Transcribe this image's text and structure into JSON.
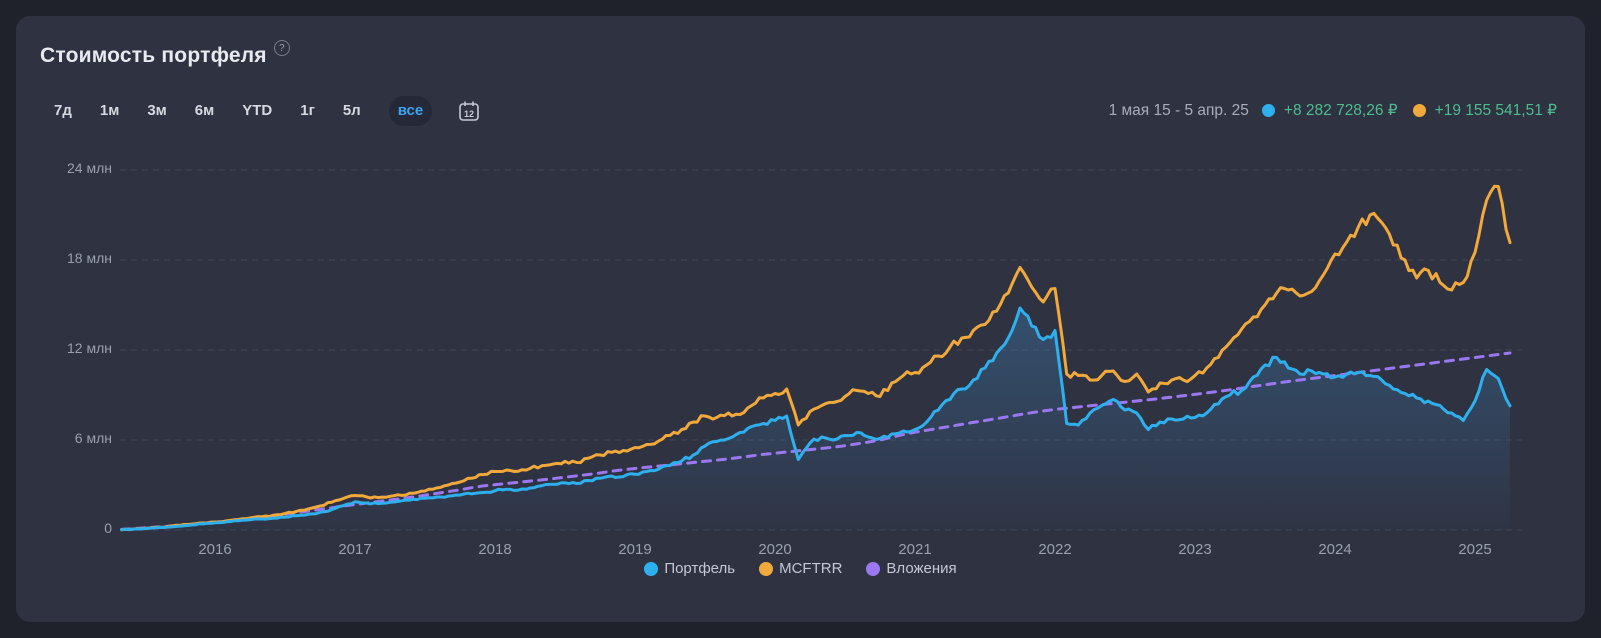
{
  "page": {
    "title": "Стоимость портфеля",
    "help_glyph": "?"
  },
  "controls": {
    "ranges": [
      "7д",
      "1м",
      "3м",
      "6м",
      "YTD",
      "1г",
      "5л",
      "все"
    ],
    "selected_range": "все",
    "calendar_day": "12"
  },
  "summary": {
    "period": "1 мая 15 - 5 апр. 25",
    "portfolio_gain": "+8 282 728,26 ₽",
    "benchmark_gain": "+19 155 541,51 ₽",
    "gain_color": "#4dbd8e"
  },
  "colors": {
    "background": "#20222b",
    "card": "#2e3241",
    "grid": "#565b6a",
    "axis_text": "#9aa0ad",
    "accent_blue": "#3aa6f2"
  },
  "chart_data": {
    "type": "line",
    "title": "Стоимость портфеля",
    "x_start": "2015-05",
    "x_end": "2025-04",
    "x_interval": "monthly",
    "xlabel": "",
    "ylabel": "млн ₽",
    "ylim": [
      0,
      24
    ],
    "grid": true,
    "legend_position": "bottom",
    "y_ticks": [
      "24 млн",
      "18 млн",
      "12 млн",
      "6 млн",
      "0"
    ],
    "y_tick_values": [
      24,
      18,
      12,
      6,
      0
    ],
    "x_ticks": [
      "2016",
      "2017",
      "2018",
      "2019",
      "2020",
      "2021",
      "2022",
      "2023",
      "2024",
      "2025"
    ],
    "series": [
      {
        "name": "Портфель",
        "color": "#2fb0ee",
        "style": "solid",
        "area_fill": true,
        "values": [
          0.02,
          0.06,
          0.1,
          0.15,
          0.2,
          0.26,
          0.33,
          0.41,
          0.48,
          0.55,
          0.62,
          0.68,
          0.73,
          0.79,
          0.86,
          0.95,
          1.05,
          1.18,
          1.36,
          1.62,
          1.88,
          1.8,
          1.76,
          1.85,
          1.95,
          2.05,
          2.12,
          2.2,
          2.26,
          2.33,
          2.41,
          2.5,
          2.62,
          2.72,
          2.66,
          2.8,
          2.95,
          3.05,
          3.15,
          3.1,
          3.3,
          3.45,
          3.6,
          3.56,
          3.72,
          3.9,
          4.05,
          4.3,
          4.6,
          5.0,
          5.6,
          5.9,
          6.1,
          6.5,
          6.9,
          7.1,
          7.3,
          7.6,
          4.7,
          5.8,
          6.2,
          6.0,
          6.3,
          6.5,
          6.2,
          6.1,
          6.4,
          6.6,
          6.7,
          7.2,
          8.0,
          8.7,
          9.4,
          10.0,
          10.8,
          11.8,
          12.8,
          14.8,
          13.6,
          12.7,
          13.3,
          7.1,
          7.0,
          7.8,
          8.3,
          8.7,
          8.0,
          7.8,
          6.7,
          7.2,
          7.4,
          7.4,
          7.5,
          7.8,
          8.4,
          9.0,
          9.3,
          10.2,
          11.0,
          11.5,
          10.8,
          10.4,
          10.6,
          10.4,
          10.2,
          10.4,
          10.5,
          10.3,
          10.0,
          9.4,
          9.1,
          8.8,
          8.6,
          8.3,
          7.8,
          7.3,
          8.6,
          10.7,
          10.1,
          8.28
        ]
      },
      {
        "name": "MCFTRR",
        "color": "#f2a93b",
        "style": "solid",
        "area_fill": false,
        "values": [
          0.02,
          0.07,
          0.12,
          0.18,
          0.24,
          0.31,
          0.39,
          0.47,
          0.53,
          0.61,
          0.7,
          0.8,
          0.88,
          0.98,
          1.1,
          1.25,
          1.41,
          1.6,
          1.85,
          2.1,
          2.3,
          2.21,
          2.16,
          2.25,
          2.31,
          2.45,
          2.6,
          2.8,
          3.0,
          3.2,
          3.45,
          3.7,
          3.9,
          4.0,
          3.92,
          4.1,
          4.28,
          4.4,
          4.58,
          4.5,
          4.78,
          5.0,
          5.18,
          5.3,
          5.5,
          5.7,
          5.92,
          6.3,
          6.7,
          7.2,
          7.6,
          7.5,
          7.8,
          7.7,
          8.3,
          8.8,
          9.1,
          9.4,
          7.0,
          7.9,
          8.3,
          8.5,
          8.9,
          9.3,
          9.1,
          8.9,
          9.8,
          10.3,
          10.5,
          11.0,
          11.6,
          12.2,
          12.8,
          13.3,
          13.7,
          14.6,
          15.8,
          17.5,
          16.2,
          15.2,
          16.1,
          10.4,
          10.3,
          10.0,
          10.3,
          10.6,
          9.9,
          10.4,
          9.2,
          9.8,
          10.0,
          10.0,
          10.3,
          10.8,
          11.5,
          12.5,
          13.4,
          14.2,
          15.0,
          15.8,
          16.0,
          15.6,
          15.9,
          17.0,
          18.4,
          19.2,
          20.2,
          21.0,
          20.5,
          19.0,
          18.0,
          16.8,
          17.3,
          16.5,
          16.0,
          16.5,
          18.5,
          22.0,
          22.9,
          19.16
        ]
      },
      {
        "name": "Вложения",
        "color": "#9b78f2",
        "style": "dashed",
        "area_fill": false,
        "values": [
          0.04,
          0.09,
          0.14,
          0.19,
          0.25,
          0.31,
          0.38,
          0.45,
          0.52,
          0.6,
          0.69,
          0.78,
          0.87,
          0.96,
          1.06,
          1.16,
          1.26,
          1.37,
          1.48,
          1.6,
          1.7,
          1.8,
          1.9,
          2.0,
          2.1,
          2.21,
          2.32,
          2.44,
          2.56,
          2.68,
          2.82,
          2.94,
          3.02,
          3.1,
          3.18,
          3.26,
          3.34,
          3.43,
          3.52,
          3.61,
          3.7,
          3.8,
          3.92,
          4.02,
          4.1,
          4.18,
          4.26,
          4.34,
          4.42,
          4.5,
          4.58,
          4.66,
          4.74,
          4.84,
          4.94,
          5.04,
          5.12,
          5.2,
          5.28,
          5.36,
          5.44,
          5.52,
          5.62,
          5.74,
          5.86,
          6.0,
          6.18,
          6.36,
          6.52,
          6.65,
          6.78,
          6.91,
          7.04,
          7.17,
          7.3,
          7.43,
          7.56,
          7.69,
          7.82,
          7.94,
          8.04,
          8.12,
          8.2,
          8.28,
          8.36,
          8.44,
          8.52,
          8.6,
          8.68,
          8.77,
          8.86,
          8.95,
          9.04,
          9.14,
          9.24,
          9.35,
          9.46,
          9.57,
          9.68,
          9.79,
          9.9,
          10.0,
          10.1,
          10.2,
          10.3,
          10.4,
          10.5,
          10.6,
          10.7,
          10.8,
          10.9,
          11.0,
          11.1,
          11.2,
          11.3,
          11.4,
          11.5,
          11.6,
          11.7,
          11.8
        ]
      }
    ]
  }
}
